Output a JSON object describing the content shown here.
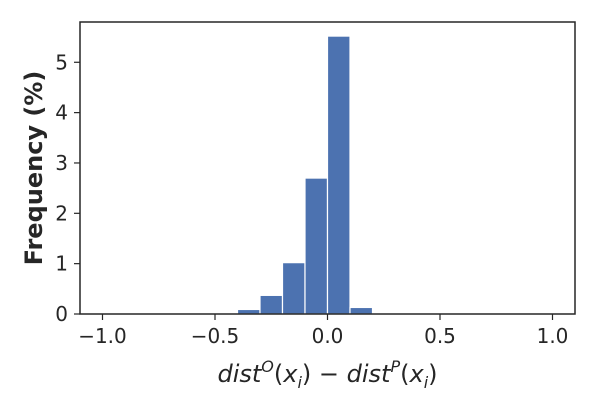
{
  "chart_data": {
    "type": "bar",
    "subtype": "histogram",
    "title": "",
    "xlabel": {
      "parts": [
        {
          "text": "dist",
          "style": "italic"
        },
        {
          "text": "O",
          "style": "sup"
        },
        {
          "text": "(",
          "style": "upright"
        },
        {
          "text": "x",
          "style": "italic"
        },
        {
          "text": "i",
          "style": "sub"
        },
        {
          "text": ") − ",
          "style": "upright"
        },
        {
          "text": "dist",
          "style": "italic"
        },
        {
          "text": "P",
          "style": "sup"
        },
        {
          "text": "(",
          "style": "upright"
        },
        {
          "text": "x",
          "style": "italic"
        },
        {
          "text": "i",
          "style": "sub"
        },
        {
          "text": ")",
          "style": "upright"
        }
      ]
    },
    "ylabel": "Frequency (%)",
    "xlim": [
      -1.1,
      1.1
    ],
    "ylim": [
      0,
      5.8
    ],
    "xticks": [
      -1.0,
      -0.5,
      0.0,
      0.5,
      1.0
    ],
    "xtick_labels": [
      "−1.0",
      "−0.5",
      "0.0",
      "0.5",
      "1.0"
    ],
    "yticks": [
      0,
      1,
      2,
      3,
      4,
      5
    ],
    "ytick_labels": [
      "0",
      "1",
      "2",
      "3",
      "4",
      "5"
    ],
    "grid": false,
    "bar_color": "#4c72b0",
    "bins": [
      {
        "x0": -0.4,
        "x1": -0.3,
        "value": 0.09
      },
      {
        "x0": -0.3,
        "x1": -0.2,
        "value": 0.37
      },
      {
        "x0": -0.2,
        "x1": -0.1,
        "value": 1.02
      },
      {
        "x0": -0.1,
        "x1": 0.0,
        "value": 2.7
      },
      {
        "x0": 0.0,
        "x1": 0.1,
        "value": 5.52
      },
      {
        "x0": 0.1,
        "x1": 0.2,
        "value": 0.13
      }
    ]
  }
}
